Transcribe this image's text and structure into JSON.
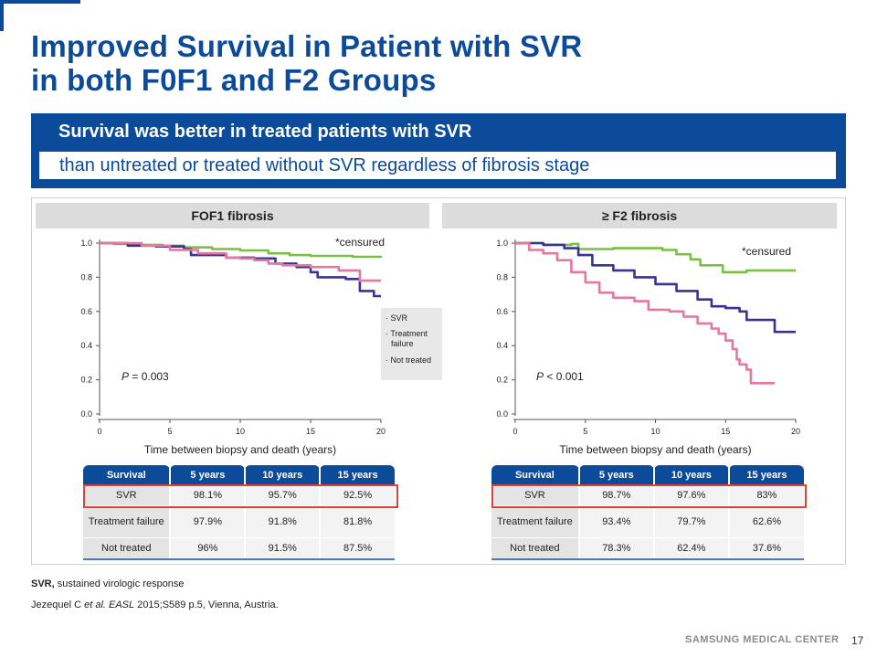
{
  "slide": {
    "title_line1": "Improved Survival in Patient with SVR",
    "title_line2": "in both F0F1 and F2 Groups",
    "banner_heading": "Survival was better in treated patients with SVR",
    "banner_subheading": "than untreated or treated without SVR regardless of fibrosis stage",
    "footnote_term": "SVR,",
    "footnote_text": " sustained virologic response",
    "citation_authors": "Jezequel C ",
    "citation_etal": "et al. EASL",
    "citation_rest": " 2015;S589 p.5, Vienna, Austria.",
    "brand": "SAMSUNG MEDICAL CENTER",
    "page_number": "17",
    "colors": {
      "brand_blue": "#0c4a9a",
      "svr": "#7ac143",
      "treatment_failure": "#3b3390",
      "not_treated": "#e8779c",
      "highlight": "#d9443a"
    }
  },
  "chart_data": [
    {
      "type": "line",
      "title": "FOF1 fibrosis",
      "xlabel": "Time between biopsy and death (years)",
      "ylabel": "",
      "xlim": [
        0,
        20
      ],
      "ylim": [
        0,
        1
      ],
      "x_ticks": [
        "0",
        "5",
        "10",
        "15",
        "20"
      ],
      "y_ticks": [
        "0.0",
        "0.2",
        "0.4",
        "0.6",
        "0.8",
        "1.0"
      ],
      "censored_note": "*censured",
      "p_value": "= 0.003",
      "legend": {
        "position": "right",
        "entries": [
          "SVR",
          "Treatment failure",
          "Not treated"
        ]
      },
      "series": [
        {
          "name": "SVR",
          "color": "#7ac143",
          "points": [
            [
              0,
              1
            ],
            [
              1,
              0.995
            ],
            [
              3,
              0.99
            ],
            [
              4.5,
              0.985
            ],
            [
              6,
              0.975
            ],
            [
              8,
              0.965
            ],
            [
              10,
              0.957
            ],
            [
              12,
              0.94
            ],
            [
              13.5,
              0.93
            ],
            [
              15,
              0.925
            ],
            [
              17,
              0.925
            ],
            [
              18,
              0.92
            ],
            [
              20,
              0.915
            ]
          ]
        },
        {
          "name": "Treatment failure",
          "color": "#3b3390",
          "points": [
            [
              0,
              1
            ],
            [
              2,
              0.985
            ],
            [
              4,
              0.98
            ],
            [
              6,
              0.965
            ],
            [
              6.5,
              0.93
            ],
            [
              8,
              0.93
            ],
            [
              9,
              0.915
            ],
            [
              11,
              0.91
            ],
            [
              12.5,
              0.88
            ],
            [
              14,
              0.86
            ],
            [
              15,
              0.83
            ],
            [
              15.5,
              0.8
            ],
            [
              17.5,
              0.79
            ],
            [
              18.5,
              0.72
            ],
            [
              19.5,
              0.69
            ],
            [
              20,
              0.69
            ]
          ]
        },
        {
          "name": "Not treated",
          "color": "#e8779c",
          "points": [
            [
              0,
              1
            ],
            [
              3,
              0.985
            ],
            [
              5,
              0.96
            ],
            [
              7,
              0.94
            ],
            [
              9,
              0.915
            ],
            [
              10,
              0.91
            ],
            [
              11,
              0.9
            ],
            [
              12,
              0.88
            ],
            [
              13,
              0.87
            ],
            [
              14,
              0.87
            ],
            [
              15,
              0.86
            ],
            [
              16,
              0.86
            ],
            [
              17,
              0.84
            ],
            [
              18.5,
              0.84
            ],
            [
              18.5,
              0.78
            ],
            [
              20,
              0.78
            ]
          ]
        }
      ],
      "table": {
        "headers": [
          "Survival",
          "5 years",
          "10 years",
          "15 years"
        ],
        "rows": [
          [
            "SVR",
            "98.1%",
            "95.7%",
            "92.5%"
          ],
          [
            "Treatment failure",
            "97.9%",
            "91.8%",
            "81.8%"
          ],
          [
            "Not treated",
            "96%",
            "91.5%",
            "87.5%"
          ]
        ]
      }
    },
    {
      "type": "line",
      "title": "≥ F2 fibrosis",
      "xlabel": "Time between biopsy and death (years)",
      "ylabel": "",
      "xlim": [
        0,
        20
      ],
      "ylim": [
        0,
        1
      ],
      "x_ticks": [
        "0",
        "5",
        "10",
        "15",
        "20"
      ],
      "y_ticks": [
        "0.0",
        "0.2",
        "0.4",
        "0.6",
        "0.8",
        "1.0"
      ],
      "censored_note": "*censured",
      "p_value": "< 0.001",
      "series": [
        {
          "name": "SVR",
          "color": "#7ac143",
          "points": [
            [
              0,
              1
            ],
            [
              2,
              0.99
            ],
            [
              4,
              0.995
            ],
            [
              4.5,
              0.965
            ],
            [
              7,
              0.97
            ],
            [
              9,
              0.97
            ],
            [
              10.5,
              0.96
            ],
            [
              11.5,
              0.935
            ],
            [
              12.5,
              0.905
            ],
            [
              13.2,
              0.87
            ],
            [
              14.2,
              0.87
            ],
            [
              14.8,
              0.83
            ],
            [
              16,
              0.83
            ],
            [
              16.5,
              0.84
            ],
            [
              20,
              0.84
            ]
          ]
        },
        {
          "name": "Treatment failure",
          "color": "#3b3390",
          "points": [
            [
              0,
              1
            ],
            [
              2,
              0.99
            ],
            [
              3.5,
              0.97
            ],
            [
              4.5,
              0.93
            ],
            [
              5.5,
              0.87
            ],
            [
              7,
              0.84
            ],
            [
              8.5,
              0.8
            ],
            [
              10,
              0.76
            ],
            [
              11.5,
              0.72
            ],
            [
              13,
              0.67
            ],
            [
              14,
              0.63
            ],
            [
              15,
              0.62
            ],
            [
              16,
              0.6
            ],
            [
              16.5,
              0.55
            ],
            [
              18,
              0.55
            ],
            [
              18.5,
              0.48
            ],
            [
              20,
              0.48
            ]
          ]
        },
        {
          "name": "Not treated",
          "color": "#e8779c",
          "points": [
            [
              0,
              1
            ],
            [
              1,
              0.96
            ],
            [
              2,
              0.94
            ],
            [
              3,
              0.9
            ],
            [
              4,
              0.83
            ],
            [
              5,
              0.77
            ],
            [
              6,
              0.71
            ],
            [
              7,
              0.68
            ],
            [
              8.5,
              0.66
            ],
            [
              9.5,
              0.61
            ],
            [
              11,
              0.6
            ],
            [
              12,
              0.57
            ],
            [
              13,
              0.53
            ],
            [
              14,
              0.5
            ],
            [
              14.5,
              0.47
            ],
            [
              15,
              0.43
            ],
            [
              15.5,
              0.38
            ],
            [
              15.8,
              0.32
            ],
            [
              16,
              0.29
            ],
            [
              16.5,
              0.26
            ],
            [
              16.8,
              0.18
            ],
            [
              18.5,
              0.18
            ]
          ]
        }
      ],
      "table": {
        "headers": [
          "Survival",
          "5 years",
          "10 years",
          "15 years"
        ],
        "rows": [
          [
            "SVR",
            "98.7%",
            "97.6%",
            "83%"
          ],
          [
            "Treatment failure",
            "93.4%",
            "79.7%",
            "62.6%"
          ],
          [
            "Not treated",
            "78.3%",
            "62.4%",
            "37.6%"
          ]
        ]
      }
    }
  ]
}
